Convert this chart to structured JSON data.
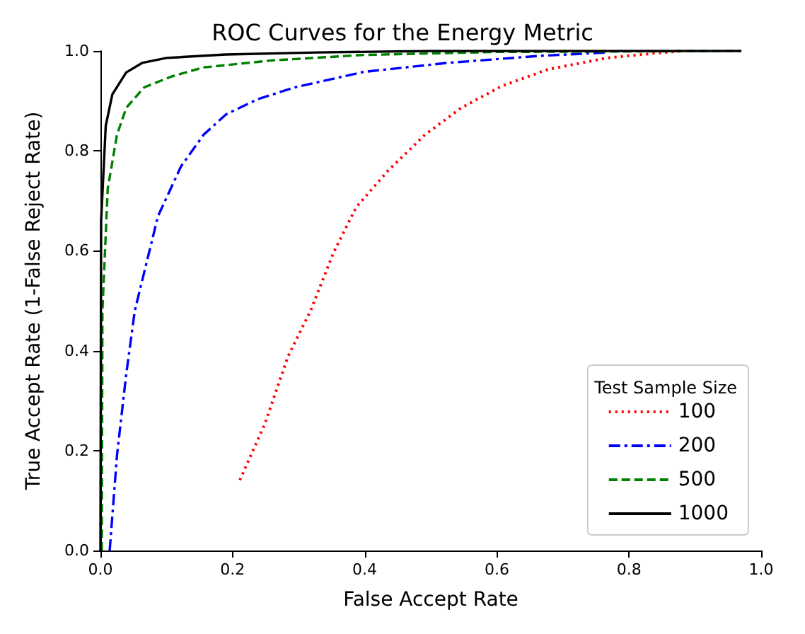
{
  "chart_data": {
    "type": "line",
    "title": "ROC Curves for the Energy Metric",
    "xlabel": "False Accept Rate",
    "ylabel": "True Accept Rate (1-False Reject Rate)",
    "legend_title": "Test Sample Size",
    "legend": "bottom right",
    "grid": false,
    "marker": "none",
    "xlim": [
      0,
      1
    ],
    "ylim": [
      0,
      1
    ],
    "xticks": [
      {
        "value": 0,
        "label": "0.0"
      },
      {
        "value": 0.2,
        "label": "0.2"
      },
      {
        "value": 0.4,
        "label": "0.4"
      },
      {
        "value": 0.6,
        "label": "0.6"
      },
      {
        "value": 0.8,
        "label": "0.8"
      },
      {
        "value": 1,
        "label": "1.0"
      }
    ],
    "yticks": [
      {
        "value": 0,
        "label": "0.0"
      },
      {
        "value": 0.2,
        "label": "0.2"
      },
      {
        "value": 0.4,
        "label": "0.4"
      },
      {
        "value": 0.6,
        "label": "0.6"
      },
      {
        "value": 0.8,
        "label": "0.8"
      },
      {
        "value": 1,
        "label": "1.0"
      }
    ],
    "series": [
      {
        "name": "100",
        "color": "#ff0000",
        "line_style": "dotted",
        "x": [
          0.211,
          0.249,
          0.284,
          0.318,
          0.353,
          0.387,
          0.435,
          0.491,
          0.546,
          0.608,
          0.677,
          0.767,
          0.836,
          0.88
        ],
        "values": [
          0.141,
          0.254,
          0.389,
          0.48,
          0.597,
          0.687,
          0.76,
          0.832,
          0.886,
          0.93,
          0.963,
          0.986,
          0.995,
          1.0
        ]
      },
      {
        "name": "200",
        "color": "#0000ff",
        "line_style": "dashdot",
        "x": [
          0.014,
          0.025,
          0.039,
          0.052,
          0.087,
          0.122,
          0.156,
          0.19,
          0.239,
          0.294,
          0.398,
          0.525,
          0.663,
          0.767
        ],
        "values": [
          0.0,
          0.19,
          0.353,
          0.48,
          0.669,
          0.769,
          0.832,
          0.873,
          0.904,
          0.927,
          0.958,
          0.976,
          0.99,
          0.997
        ]
      },
      {
        "name": "500",
        "color": "#008000",
        "line_style": "dashed",
        "x": [
          0.002,
          0.003,
          0.011,
          0.025,
          0.039,
          0.066,
          0.108,
          0.156,
          0.259,
          0.398,
          0.6,
          0.97
        ],
        "values": [
          0.0,
          0.48,
          0.724,
          0.832,
          0.886,
          0.927,
          0.949,
          0.967,
          0.981,
          0.992,
          0.998,
          1.0
        ]
      },
      {
        "name": "1000",
        "color": "#000000",
        "line_style": "solid",
        "x": [
          0.0,
          0.001,
          0.008,
          0.018,
          0.039,
          0.063,
          0.1,
          0.19,
          0.328,
          0.5,
          0.97
        ],
        "values": [
          0.0,
          0.66,
          0.85,
          0.913,
          0.957,
          0.976,
          0.986,
          0.993,
          0.997,
          1.0,
          1.0
        ]
      }
    ]
  }
}
